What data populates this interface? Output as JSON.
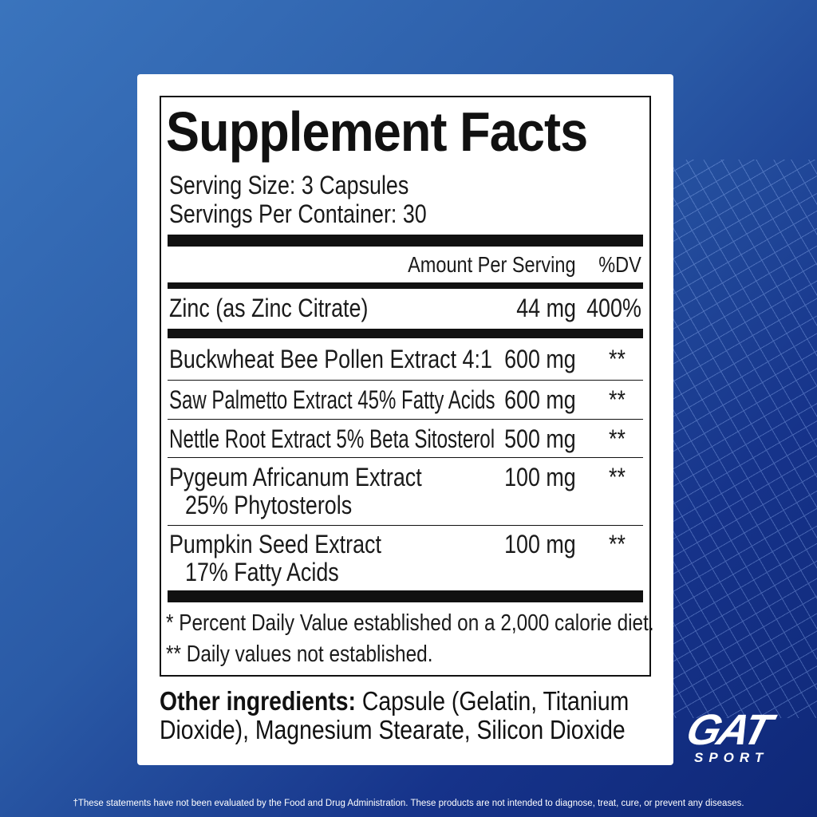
{
  "title": "Supplement Facts",
  "serving_size": "Serving Size: 3 Capsules",
  "servings_per_container": "Servings Per Container: 30",
  "header": {
    "amount": "Amount Per Serving",
    "dv": "%DV"
  },
  "rows": [
    {
      "name": "Zinc (as Zinc Citrate)",
      "amount": "44 mg",
      "dv": "400%"
    },
    {
      "name": "Buckwheat Bee Pollen Extract 4:1",
      "amount": "600 mg",
      "dv": "**"
    },
    {
      "name": "Saw Palmetto Extract 45% Fatty Acids",
      "amount": "600 mg",
      "dv": "**"
    },
    {
      "name": "Nettle Root Extract 5% Beta Sitosterol",
      "amount": "500 mg",
      "dv": "**"
    },
    {
      "name": "Pygeum Africanum Extract",
      "sub": "25% Phytosterols",
      "amount": "100 mg",
      "dv": "**"
    },
    {
      "name": "Pumpkin Seed Extract",
      "sub": "17% Fatty Acids",
      "amount": "100 mg",
      "dv": "**"
    }
  ],
  "footnotes": [
    "* Percent Daily Value established on a 2,000 calorie diet.",
    "** Daily values not established."
  ],
  "other_label": "Other ingredients:",
  "other_text": " Capsule (Gelatin, Titanium Dioxide), Magnesium Stearate, Silicon Dioxide",
  "logo": {
    "brand": "GAT",
    "sub": "SPORT"
  },
  "disclaimer": "†These statements have not been evaluated by the Food and Drug Administration. These products are not intended to diagnose, treat, cure, or prevent any diseases."
}
